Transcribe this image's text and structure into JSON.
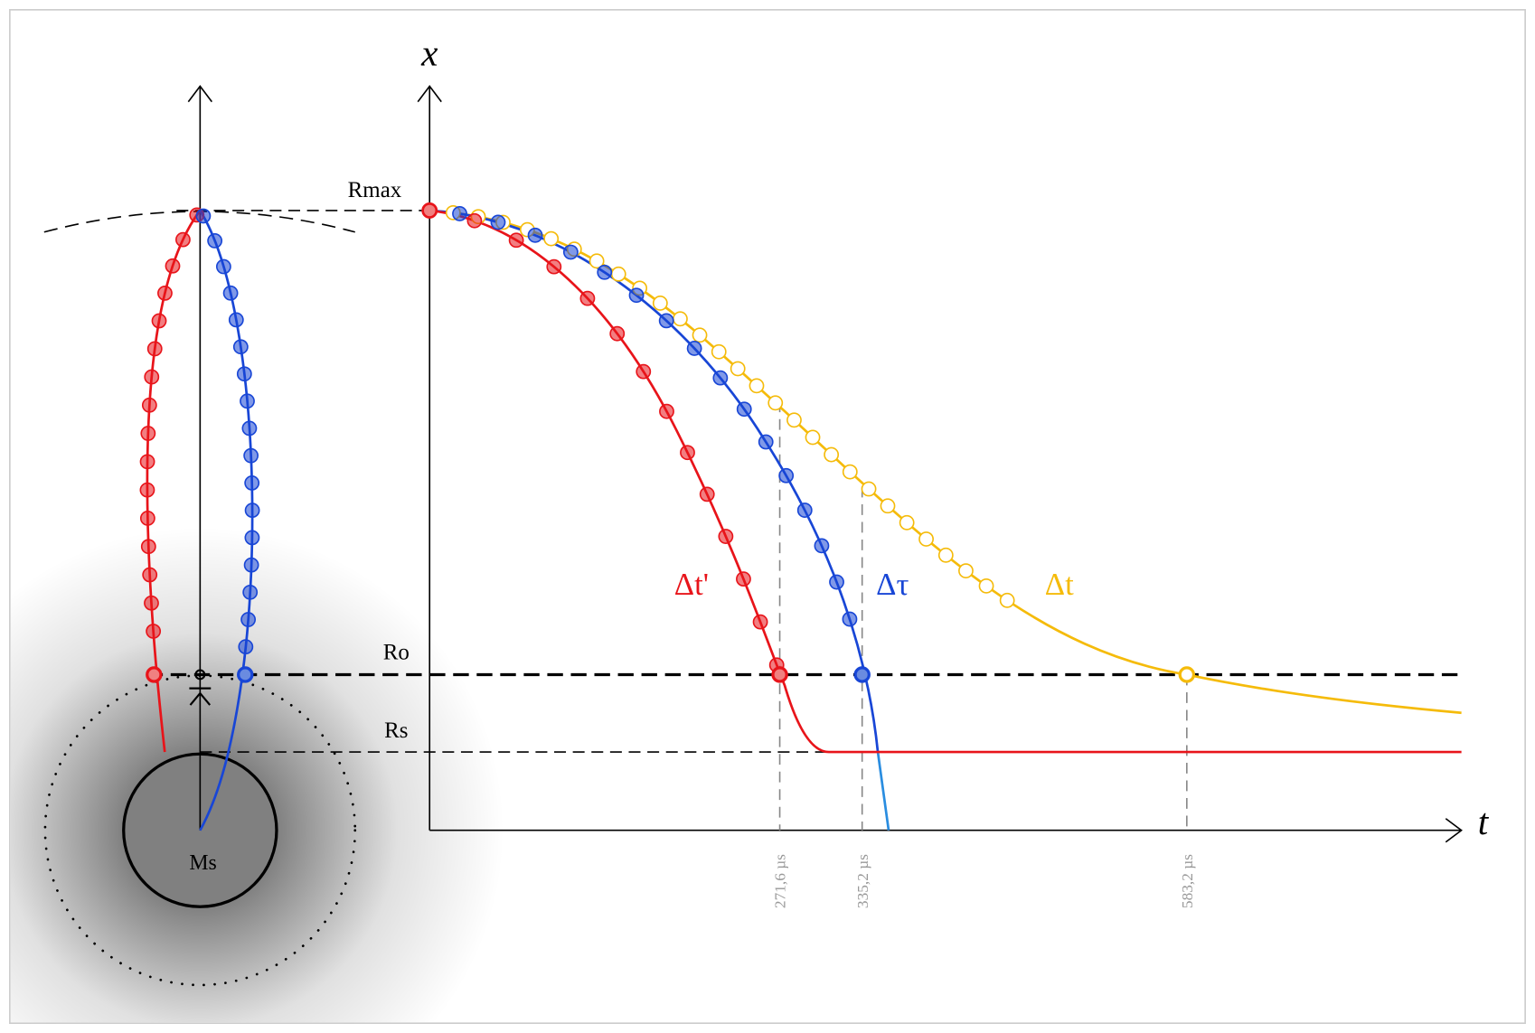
{
  "axes": {
    "x_label": "x",
    "t_label": "t"
  },
  "levels": {
    "rmax": "Rmax",
    "ro": "Ro",
    "rs": "Rs"
  },
  "mass": "Ms",
  "curves": {
    "proper": "Δt'",
    "tau": "Δτ",
    "coordinate": "Δt"
  },
  "times": [
    "271,6 µs",
    "335,2 µs",
    "583,2 µs"
  ]
}
